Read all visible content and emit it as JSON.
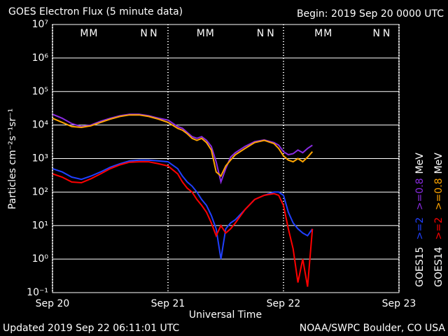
{
  "chart_data": {
    "type": "line",
    "title": "GOES Electron Flux (5 minute data)",
    "subtitle": "Begin: 2019 Sep 20 0000 UTC",
    "xlabel": "Universal Time",
    "ylabel": "Particles cm⁻²s⁻¹sr⁻¹",
    "footer_left": "Updated 2019 Sep 22 06:11:01 UTC",
    "footer_right": "NOAA/SWPC Boulder, CO USA",
    "log_y": true,
    "grid": true,
    "xlim": [
      0,
      72
    ],
    "xticks": [
      {
        "value": 0,
        "label": "Sep 20"
      },
      {
        "value": 24,
        "label": "Sep 21"
      },
      {
        "value": 48,
        "label": "Sep 22"
      },
      {
        "value": 72,
        "label": "Sep 23"
      }
    ],
    "ylim": [
      0.1,
      10000000
    ],
    "yticks": [
      {
        "value": 0.1,
        "label": "10⁻¹"
      },
      {
        "value": 1,
        "label": "10⁰"
      },
      {
        "value": 10,
        "label": "10¹"
      },
      {
        "value": 100,
        "label": "10²"
      },
      {
        "value": 1000,
        "label": "10³"
      },
      {
        "value": 10000,
        "label": "10⁴"
      },
      {
        "value": 100000,
        "label": "10⁵"
      },
      {
        "value": 1000000,
        "label": "10⁶"
      },
      {
        "value": 10000000,
        "label": "10⁷"
      }
    ],
    "threshold": 1000,
    "legend_unit": "MeV",
    "x": [
      0,
      2,
      4,
      6,
      8,
      10,
      12,
      14,
      16,
      18,
      20,
      22,
      24,
      26,
      27,
      28,
      29,
      30,
      31,
      32,
      33,
      34,
      35,
      36,
      37,
      38,
      40,
      42,
      44,
      46,
      47,
      48,
      49,
      50,
      51,
      52,
      53,
      54
    ],
    "series": [
      {
        "name": ">=0.8",
        "satellite": "GOES15",
        "color": "#8a2be2",
        "values": [
          21000,
          16000,
          11000,
          9000,
          10000,
          13000,
          16000,
          19000,
          21000,
          21000,
          19000,
          16000,
          14000,
          9000,
          8000,
          6000,
          4500,
          4000,
          4500,
          3500,
          2300,
          800,
          200,
          500,
          1100,
          1500,
          2300,
          3200,
          3600,
          3000,
          2500,
          1600,
          1300,
          1400,
          1800,
          1500,
          2000,
          2500
        ]
      },
      {
        "name": ">=2",
        "satellite": "GOES15",
        "color": "#2040ff",
        "values": [
          500,
          400,
          280,
          240,
          300,
          400,
          550,
          700,
          850,
          900,
          900,
          850,
          800,
          500,
          300,
          200,
          150,
          100,
          60,
          40,
          20,
          8,
          1,
          8,
          12,
          15,
          30,
          60,
          80,
          100,
          100,
          80,
          25,
          12,
          8,
          6,
          5,
          8
        ]
      },
      {
        "name": ">=0.8",
        "satellite": "GOES14",
        "color": "#ffa500",
        "values": [
          16000,
          12000,
          9000,
          8500,
          9500,
          12000,
          15000,
          18000,
          20000,
          20000,
          18000,
          15000,
          12000,
          8000,
          7000,
          5500,
          4000,
          3500,
          4000,
          3000,
          1800,
          400,
          300,
          600,
          900,
          1300,
          2000,
          3000,
          3500,
          2800,
          2000,
          1200,
          900,
          800,
          1000,
          800,
          1100,
          1600
        ]
      },
      {
        "name": ">=2",
        "satellite": "GOES14",
        "color": "#ff0000",
        "values": [
          350,
          280,
          200,
          190,
          250,
          350,
          500,
          650,
          780,
          800,
          800,
          700,
          600,
          350,
          200,
          130,
          100,
          60,
          40,
          25,
          12,
          5,
          10,
          6,
          8,
          12,
          30,
          60,
          80,
          90,
          80,
          40,
          8,
          2,
          0.2,
          1,
          0.15,
          8
        ]
      }
    ],
    "markers": [
      {
        "label": "M",
        "x": 6.6,
        "color": "#ff0000"
      },
      {
        "label": "M",
        "x": 8.5,
        "color": "#2040ff"
      },
      {
        "label": "N",
        "x": 19.0,
        "color": "#ff0000"
      },
      {
        "label": "N",
        "x": 21.0,
        "color": "#2040ff"
      },
      {
        "label": "M",
        "x": 30.8,
        "color": "#ff0000"
      },
      {
        "label": "M",
        "x": 32.7,
        "color": "#2040ff"
      },
      {
        "label": "N",
        "x": 43.2,
        "color": "#ff0000"
      },
      {
        "label": "N",
        "x": 45.3,
        "color": "#2040ff"
      },
      {
        "label": "M",
        "x": 55.3,
        "color": "#ff0000"
      },
      {
        "label": "M",
        "x": 57.2,
        "color": "#2040ff"
      },
      {
        "label": "N",
        "x": 67.3,
        "color": "#ff0000"
      },
      {
        "label": "N",
        "x": 69.4,
        "color": "#2040ff"
      }
    ]
  }
}
